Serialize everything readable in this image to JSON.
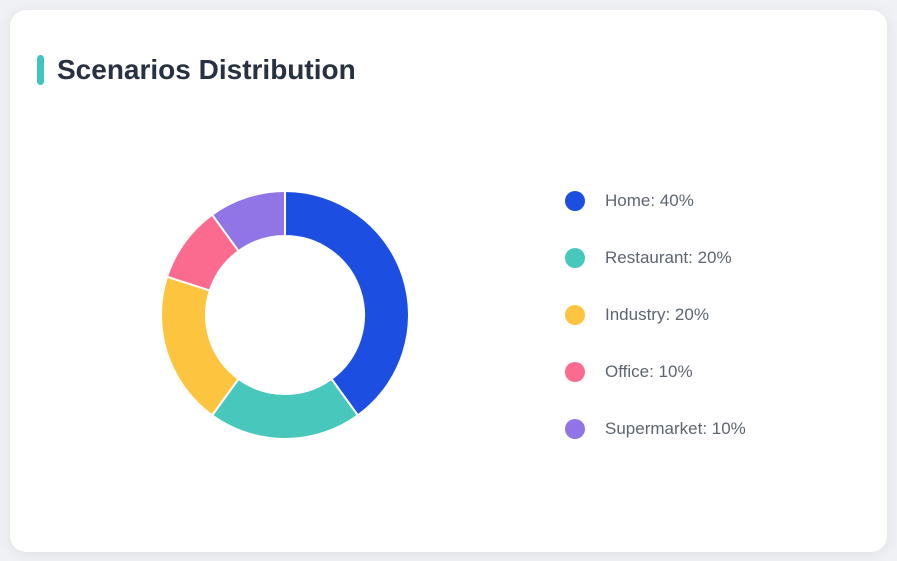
{
  "theme": {
    "accent_color": "#40c4bf",
    "card_background": "#ffffff",
    "page_background": "#eff1f4",
    "title_color": "#273142",
    "legend_text_color": "#5d6570"
  },
  "chart_data": {
    "type": "pie",
    "donut": true,
    "inner_radius_ratio": 0.64,
    "start_angle": "top",
    "direction": "clockwise",
    "title": "Scenarios Distribution",
    "legend_position": "right",
    "legend_format": "{name}: {value}%",
    "series": [
      {
        "name": "Home",
        "value": 40,
        "color": "#1d4ee2"
      },
      {
        "name": "Restaurant",
        "value": 20,
        "color": "#48c8bc"
      },
      {
        "name": "Industry",
        "value": 20,
        "color": "#fdc440"
      },
      {
        "name": "Office",
        "value": 10,
        "color": "#fb6b90"
      },
      {
        "name": "Supermarket",
        "value": 10,
        "color": "#9174e6"
      }
    ]
  }
}
